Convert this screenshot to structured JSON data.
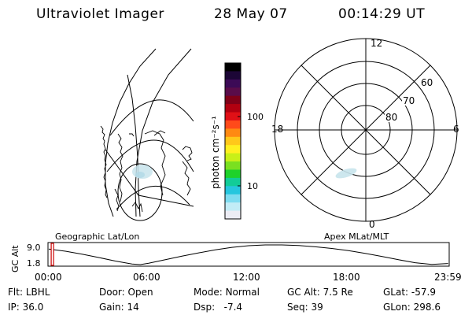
{
  "header": {
    "title": "Ultraviolet Imager",
    "date": "28 May 07",
    "time": "00:14:29 UT"
  },
  "colorbar": {
    "unit_label": "photon cm⁻²s⁻¹",
    "ticks": [
      "100",
      "10"
    ],
    "colors": [
      "#000000",
      "#1c0636",
      "#3c0a56",
      "#5a0c4a",
      "#800018",
      "#b20010",
      "#e01016",
      "#ff4a1a",
      "#ff8a12",
      "#ffc81a",
      "#fff020",
      "#c8f018",
      "#7ae020",
      "#1ed22a",
      "#12cc98",
      "#26c6de",
      "#7edcf0",
      "#c2ecf6",
      "#ececf4"
    ]
  },
  "polar_plot": {
    "hour_labels": [
      "12",
      "18",
      "6",
      "0"
    ],
    "lat_labels": [
      "60",
      "70",
      "80"
    ]
  },
  "map_label": "Geographic Lat/Lon",
  "polar_label": "Apex MLat/MLT",
  "chart_data": {
    "type": "line",
    "title": "",
    "ylabel": "GC Alt",
    "xlabel": "",
    "x_ticks": [
      "00:00",
      "06:00",
      "12:00",
      "18:00",
      "23:59"
    ],
    "y_ticks": [
      "9.0",
      "1.8"
    ],
    "ylim": [
      1.8,
      9.0
    ],
    "xlim_hours": [
      0,
      24
    ],
    "series": [
      {
        "x": [
          0.0,
          1.0,
          2.0,
          3.0,
          4.0,
          5.0,
          5.5,
          6.0,
          7.0,
          8.0,
          9.0,
          10.0,
          11.0,
          12.0,
          13.0,
          14.0,
          15.0,
          16.0,
          17.0,
          18.0,
          19.0,
          20.0,
          21.0,
          22.0,
          23.0,
          23.98
        ],
        "y": [
          7.5,
          6.7,
          5.6,
          4.4,
          3.1,
          2.0,
          1.8,
          2.3,
          3.6,
          4.9,
          6.1,
          7.2,
          8.1,
          8.7,
          9.0,
          9.0,
          8.8,
          8.3,
          7.7,
          6.9,
          5.9,
          4.8,
          3.6,
          2.5,
          1.9,
          2.2
        ]
      }
    ],
    "current_time_hours": 0.24
  },
  "status": {
    "flt_label": "Flt:",
    "flt_value": "LBHL",
    "ip_label": "IP:",
    "ip_value": "36.0",
    "door_label": "Door:",
    "door_value": "Open",
    "gain_label": "Gain:",
    "gain_value": "14",
    "mode_label": "Mode:",
    "mode_value": "Normal",
    "dsp_label": "Dsp:",
    "dsp_value": "-7.4",
    "gcalt_label": "GC Alt:",
    "gcalt_value": "7.5 Re",
    "seq_label": "Seq:",
    "seq_value": "39",
    "glat_label": "GLat:",
    "glat_value": "-57.9",
    "glon_label": "GLon:",
    "glon_value": "298.6"
  }
}
